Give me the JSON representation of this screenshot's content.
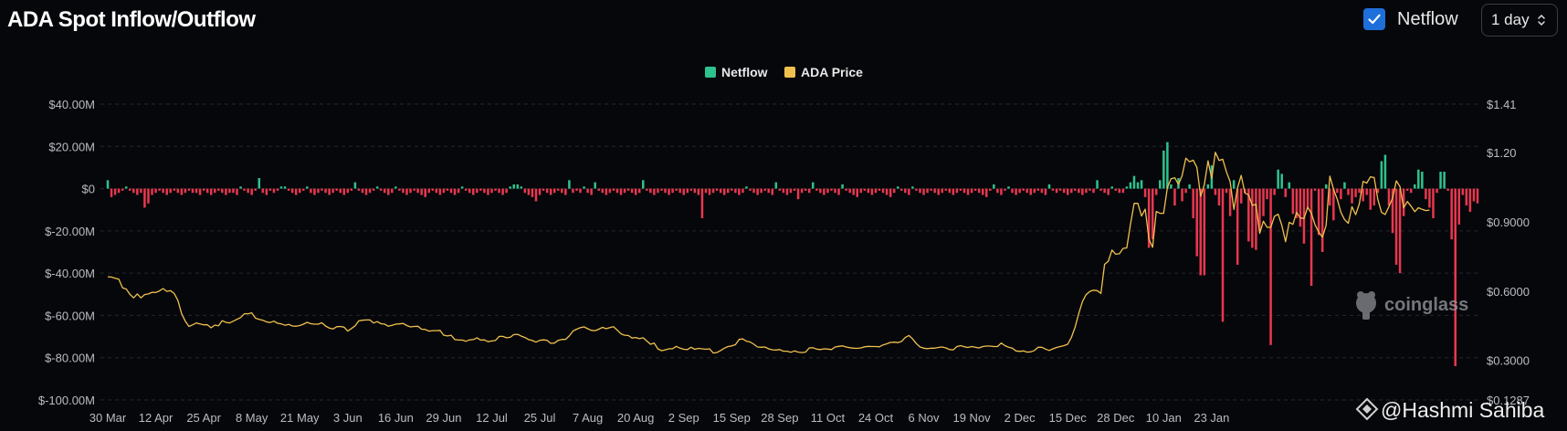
{
  "header": {
    "title": "ADA Spot Inflow/Outflow",
    "netflow_toggle": {
      "label": "Netflow",
      "checked": true
    },
    "interval_select": {
      "value": "1 day"
    }
  },
  "colors": {
    "inflow": "#2ec28f",
    "outflow": "#e8384f",
    "price": "#f0c04e",
    "background": "#06070b",
    "accent": "#1e6fd9"
  },
  "watermark": {
    "brand": "coinglass",
    "credit": "@Hashmi Sahiba"
  },
  "chart_data": {
    "type": "bar",
    "legend": [
      {
        "name": "Netflow",
        "color": "#2ec28f"
      },
      {
        "name": "ADA Price",
        "color": "#f0c04e"
      }
    ],
    "legend_position": "top-center",
    "grid": true,
    "x_tick_labels": [
      "30 Mar",
      "12 Apr",
      "25 Apr",
      "8 May",
      "21 May",
      "3 Jun",
      "16 Jun",
      "29 Jun",
      "12 Jul",
      "25 Jul",
      "7 Aug",
      "20 Aug",
      "2 Sep",
      "15 Sep",
      "28 Sep",
      "11 Oct",
      "24 Oct",
      "6 Nov",
      "19 Nov",
      "2 Dec",
      "15 Dec",
      "28 Dec",
      "10 Jan",
      "23 Jan"
    ],
    "y_left": {
      "ylim": [
        -100,
        40
      ],
      "unit": "M USD",
      "tick_labels": [
        "$40.00M",
        "$20.00M",
        "$0",
        "$-20.00M",
        "$-40.00M",
        "$-60.00M",
        "$-80.00M",
        "$-100.00M"
      ],
      "tick_values": [
        40,
        20,
        0,
        -20,
        -40,
        -60,
        -80,
        -100
      ]
    },
    "y_right": {
      "ylim": [
        0.1287,
        1.41
      ],
      "tick_labels": [
        "$1.41",
        "$1.20",
        "$0.9000",
        "$0.6000",
        "$0.3000",
        "$0.1287"
      ],
      "tick_values": [
        1.41,
        1.2,
        0.9,
        0.6,
        0.3,
        0.1287
      ]
    },
    "series": [
      {
        "name": "Netflow",
        "type": "bar",
        "axis": "left",
        "start_date": "2024-03-30",
        "values": [
          4,
          -4,
          -3,
          -2,
          -1,
          1,
          -1,
          -2,
          -3,
          -2,
          -9,
          -7,
          -3,
          -2,
          -1,
          -2,
          -3,
          -2,
          -1,
          -2,
          -3,
          -2,
          -1,
          -2,
          -2,
          -3,
          -1,
          -2,
          -3,
          -2,
          -1,
          -2,
          -3,
          -2,
          -2,
          -3,
          1,
          -1,
          -2,
          -3,
          -1,
          5,
          -2,
          -3,
          -1,
          -2,
          -1,
          1,
          1,
          -1,
          -2,
          -3,
          -2,
          -1,
          1,
          -2,
          -3,
          -2,
          -1,
          -2,
          -3,
          -2,
          -1,
          -2,
          -3,
          -2,
          -1,
          3,
          -1,
          -2,
          -3,
          -2,
          -1,
          1,
          -1,
          -2,
          -3,
          -2,
          1,
          -1,
          -2,
          -3,
          -2,
          -1,
          -2,
          -3,
          -4,
          -2,
          -1,
          -2,
          -3,
          -2,
          -1,
          -2,
          -3,
          -2,
          1,
          -1,
          -2,
          -3,
          -2,
          -1,
          -2,
          -3,
          -2,
          -1,
          -2,
          -3,
          -2,
          1,
          2,
          2,
          1,
          -2,
          -3,
          -4,
          -6,
          -3,
          -1,
          -2,
          -3,
          -2,
          -1,
          -2,
          -3,
          4,
          -2,
          -1,
          -2,
          1,
          -2,
          -3,
          3,
          -1,
          -2,
          -3,
          -2,
          -1,
          -2,
          -3,
          -2,
          -1,
          -2,
          -3,
          -2,
          4,
          -1,
          -2,
          -3,
          -2,
          -1,
          -2,
          -3,
          -2,
          -1,
          -2,
          -3,
          -2,
          -1,
          -2,
          -3,
          -14,
          -2,
          -3,
          -2,
          -1,
          -2,
          -3,
          -2,
          -1,
          -2,
          -3,
          -2,
          1,
          -1,
          -2,
          -3,
          -2,
          -1,
          -2,
          -3,
          3,
          -1,
          -2,
          -3,
          -2,
          -1,
          -5,
          -2,
          -1,
          -2,
          3,
          -1,
          -2,
          -3,
          -2,
          -1,
          -2,
          -3,
          2,
          -1,
          -2,
          -3,
          -4,
          -2,
          -1,
          -2,
          -3,
          -2,
          -1,
          -2,
          -3,
          -4,
          -2,
          1,
          -1,
          -2,
          -3,
          1,
          -1,
          -2,
          -3,
          -2,
          -1,
          -2,
          -3,
          -2,
          -1,
          -2,
          -3,
          -2,
          -1,
          -2,
          -3,
          -2,
          -1,
          -2,
          -3,
          -4,
          -1,
          2,
          -2,
          -3,
          -1,
          1,
          -2,
          -3,
          -2,
          -1,
          -2,
          -3,
          -2,
          -1,
          -2,
          -3,
          2,
          -1,
          -2,
          -1,
          -2,
          -3,
          -2,
          -1,
          -2,
          -3,
          -2,
          -1,
          -2,
          4,
          -1,
          -2,
          -3,
          1,
          -1,
          -2,
          -2,
          1,
          3,
          6,
          3,
          4,
          -4,
          -28,
          -24,
          -3,
          4,
          18,
          22,
          2,
          -8,
          5,
          -6,
          -2,
          2,
          -14,
          -32,
          -41,
          -41,
          2,
          11,
          -3,
          -8,
          -63,
          -2,
          -13,
          4,
          -36,
          -7,
          -2,
          -25,
          -28,
          -29,
          -20,
          -13,
          -5,
          -74,
          -3,
          9,
          7,
          -4,
          3,
          -12,
          -14,
          -18,
          -26,
          -9,
          -46,
          -1,
          -22,
          -30,
          2,
          -8,
          -15,
          -2,
          -5,
          3,
          -3,
          -7,
          -4,
          -2,
          -6,
          -3,
          -10,
          -8,
          -2,
          13,
          16,
          -8,
          -21,
          -36,
          -40,
          -13,
          -1,
          -2,
          2,
          9,
          8,
          -5,
          -9,
          -14,
          -2,
          8,
          8,
          -1,
          -24,
          -84,
          -17,
          -3,
          -8,
          -11,
          -6,
          -7
        ]
      },
      {
        "name": "ADA Price",
        "type": "line",
        "axis": "right",
        "start_date": "2024-03-30",
        "values": [
          0.662,
          0.661,
          0.656,
          0.652,
          0.614,
          0.609,
          0.586,
          0.571,
          0.588,
          0.571,
          0.585,
          0.588,
          0.595,
          0.594,
          0.601,
          0.611,
          0.599,
          0.602,
          0.59,
          0.56,
          0.502,
          0.47,
          0.447,
          0.454,
          0.462,
          0.458,
          0.454,
          0.454,
          0.441,
          0.453,
          0.45,
          0.472,
          0.465,
          0.462,
          0.47,
          0.478,
          0.486,
          0.502,
          0.502,
          0.506,
          0.483,
          0.478,
          0.474,
          0.467,
          0.464,
          0.47,
          0.461,
          0.458,
          0.452,
          0.456,
          0.449,
          0.448,
          0.451,
          0.457,
          0.465,
          0.459,
          0.457,
          0.457,
          0.463,
          0.449,
          0.44,
          0.436,
          0.446,
          0.447,
          0.444,
          0.427,
          0.438,
          0.45,
          0.471,
          0.474,
          0.475,
          0.475,
          0.462,
          0.468,
          0.459,
          0.457,
          0.448,
          0.452,
          0.457,
          0.458,
          0.46,
          0.451,
          0.445,
          0.447,
          0.448,
          0.435,
          0.434,
          0.427,
          0.429,
          0.429,
          0.43,
          0.409,
          0.406,
          0.409,
          0.39,
          0.388,
          0.388,
          0.383,
          0.389,
          0.39,
          0.398,
          0.388,
          0.389,
          0.381,
          0.384,
          0.386,
          0.404,
          0.404,
          0.398,
          0.4,
          0.412,
          0.413,
          0.405,
          0.399,
          0.39,
          0.386,
          0.379,
          0.387,
          0.389,
          0.387,
          0.374,
          0.375,
          0.387,
          0.391,
          0.391,
          0.406,
          0.427,
          0.435,
          0.442,
          0.445,
          0.437,
          0.43,
          0.429,
          0.435,
          0.443,
          0.437,
          0.442,
          0.446,
          0.431,
          0.415,
          0.409,
          0.408,
          0.397,
          0.399,
          0.394,
          0.398,
          0.384,
          0.37,
          0.375,
          0.35,
          0.342,
          0.346,
          0.35,
          0.351,
          0.361,
          0.353,
          0.348,
          0.347,
          0.357,
          0.348,
          0.352,
          0.35,
          0.348,
          0.35,
          0.332,
          0.334,
          0.343,
          0.353,
          0.36,
          0.363,
          0.368,
          0.391,
          0.393,
          0.383,
          0.38,
          0.37,
          0.358,
          0.357,
          0.358,
          0.35,
          0.346,
          0.345,
          0.347,
          0.34,
          0.34,
          0.335,
          0.341,
          0.336,
          0.334,
          0.336,
          0.354,
          0.355,
          0.349,
          0.347,
          0.35,
          0.349,
          0.347,
          0.358,
          0.361,
          0.363,
          0.358,
          0.355,
          0.353,
          0.352,
          0.354,
          0.359,
          0.361,
          0.36,
          0.36,
          0.359,
          0.367,
          0.372,
          0.378,
          0.379,
          0.377,
          0.382,
          0.399,
          0.408,
          0.393,
          0.373,
          0.358,
          0.353,
          0.351,
          0.353,
          0.353,
          0.356,
          0.358,
          0.354,
          0.347,
          0.346,
          0.36,
          0.364,
          0.359,
          0.356,
          0.36,
          0.357,
          0.354,
          0.36,
          0.362,
          0.362,
          0.36,
          0.36,
          0.375,
          0.364,
          0.357,
          0.353,
          0.341,
          0.339,
          0.341,
          0.336,
          0.337,
          0.343,
          0.357,
          0.357,
          0.349,
          0.343,
          0.35,
          0.356,
          0.36,
          0.364,
          0.37,
          0.4,
          0.444,
          0.503,
          0.555,
          0.585,
          0.599,
          0.604,
          0.602,
          0.59,
          0.716,
          0.73,
          0.778,
          0.76,
          0.762,
          0.785,
          0.787,
          0.888,
          0.98,
          0.98,
          0.925,
          0.955,
          0.825,
          0.79,
          0.945,
          0.937,
          0.937,
          1.049,
          1.087,
          1.091,
          1.062,
          1.1,
          1.176,
          1.16,
          1.167,
          1.136,
          1.011,
          1.06,
          1.164,
          1.088,
          1.201,
          1.166,
          1.171,
          1.116,
          1.074,
          0.954,
          1.047,
          1.101,
          1.025,
          1.017,
          0.971,
          0.976,
          0.85,
          0.903,
          0.877,
          0.876,
          0.924,
          0.933,
          0.885,
          0.814,
          0.898,
          0.889,
          0.941,
          0.917,
          0.915,
          0.963,
          0.937,
          0.887,
          0.856,
          0.834,
          0.885,
          1.098,
          1.042,
          0.998,
          0.941,
          0.91,
          0.894,
          0.966,
          0.931,
          0.979,
          1.075,
          1.068,
          1.095,
          1.092,
          0.998,
          0.941,
          0.932,
          0.966,
          1.003,
          1.078,
          1.053,
          0.961,
          0.988,
          0.968,
          0.944,
          0.961,
          0.954,
          0.949,
          0.951
        ]
      }
    ]
  }
}
